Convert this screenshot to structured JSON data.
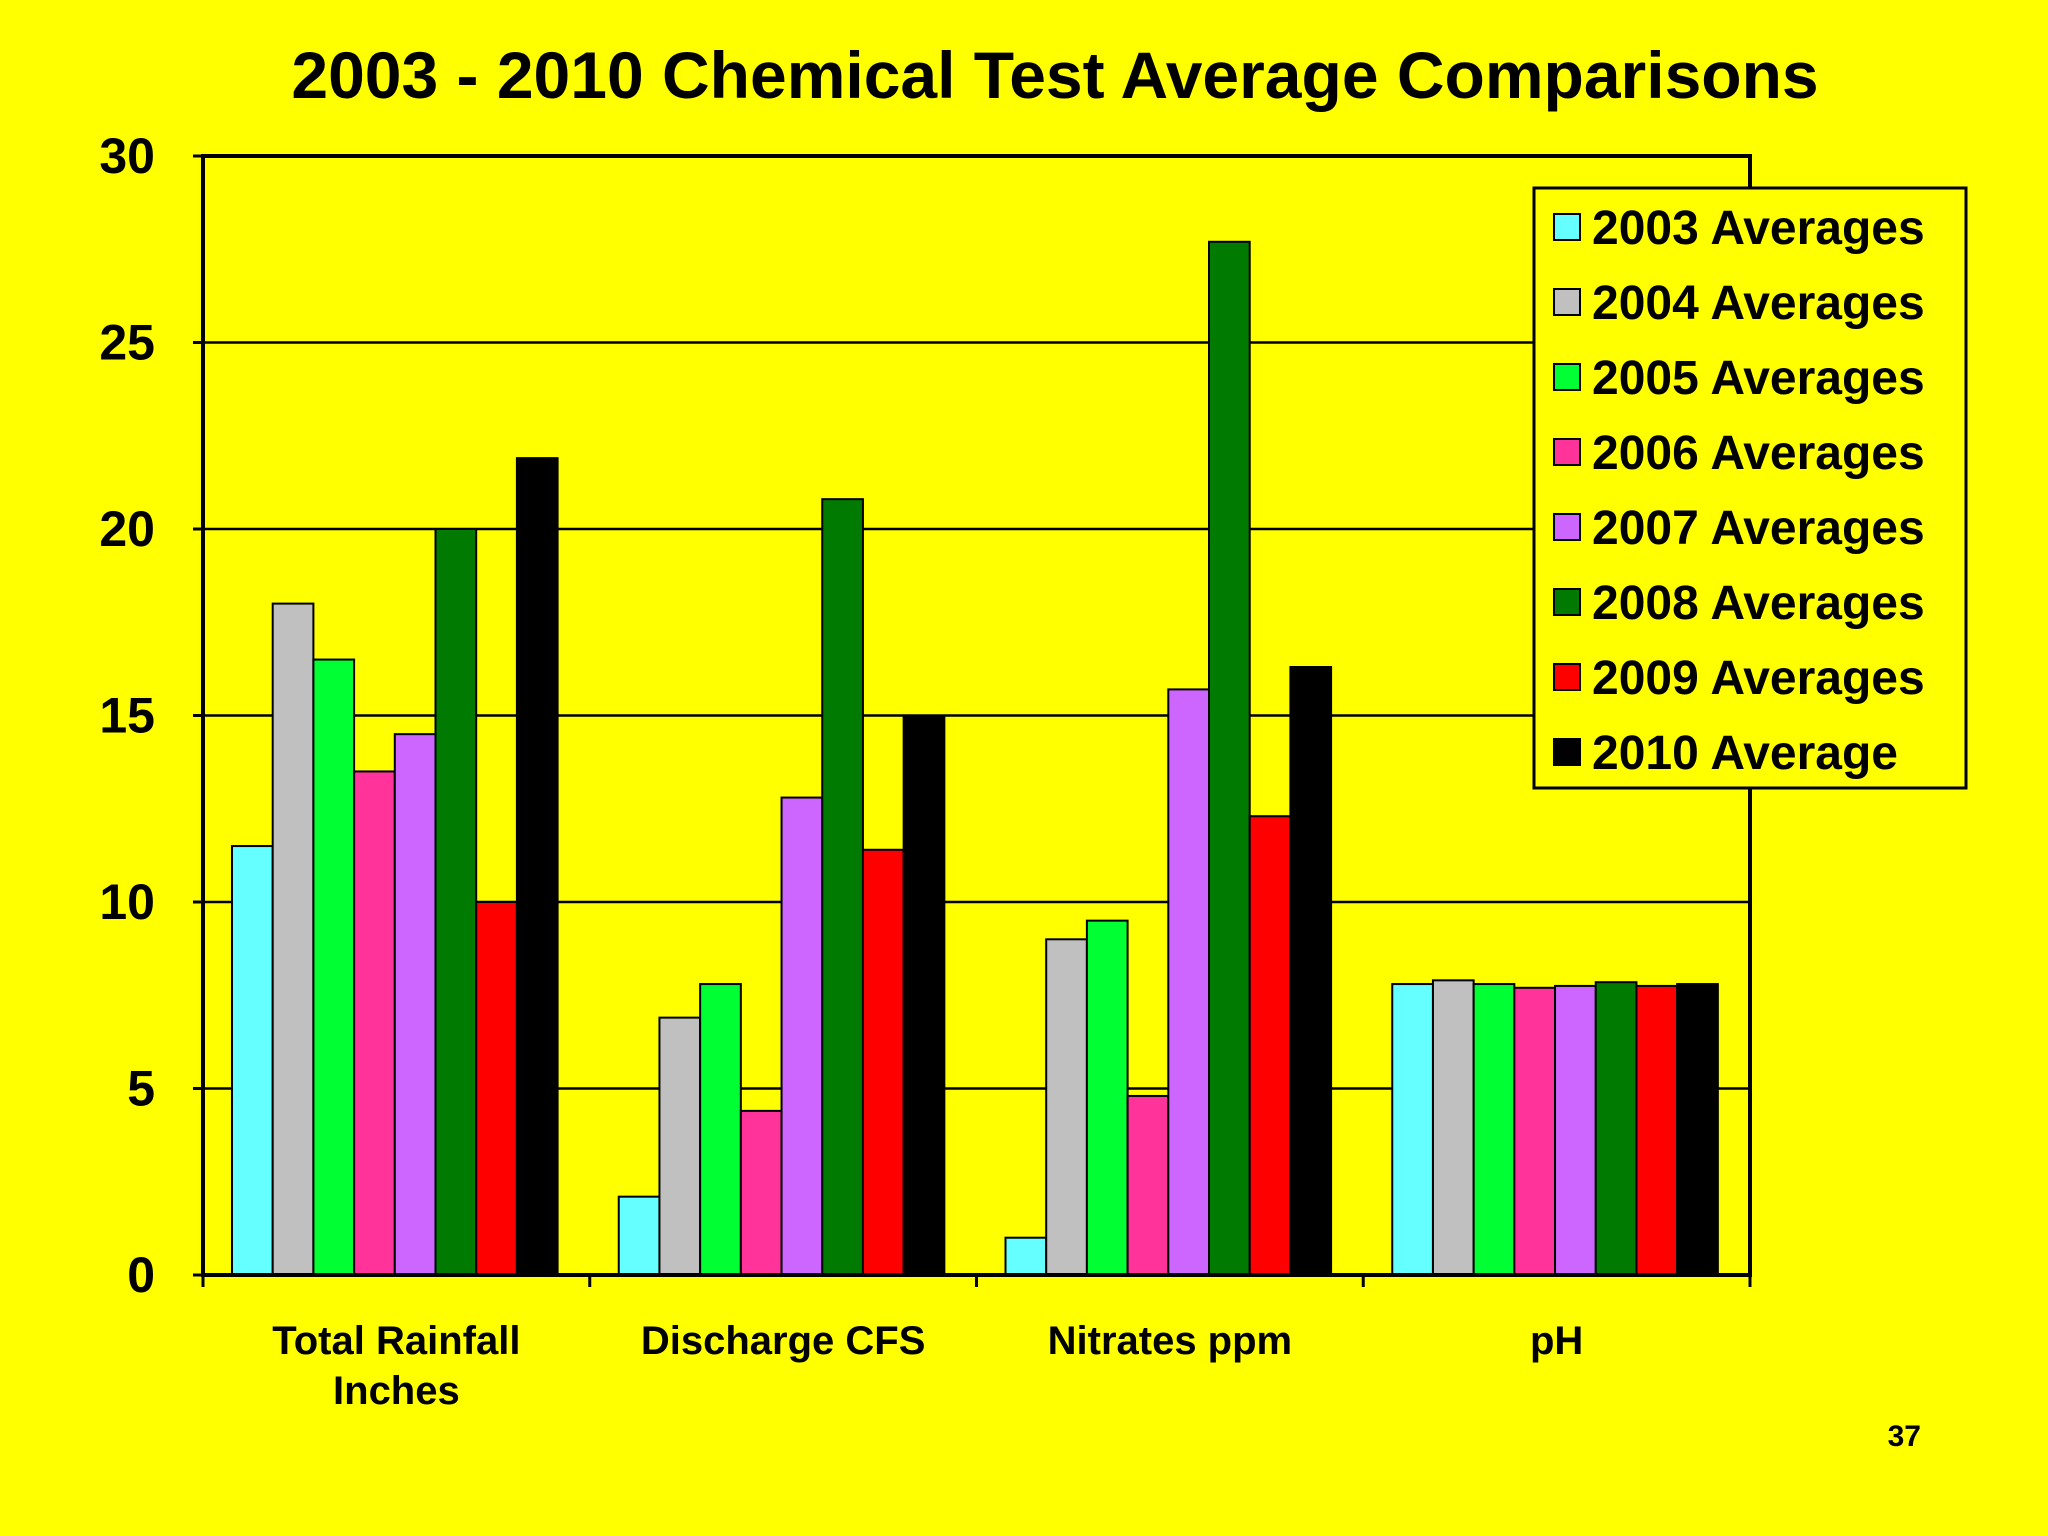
{
  "chart_data": {
    "type": "bar",
    "title": "2003 - 2010 Chemical Test Average Comparisons",
    "categories": [
      [
        "Total Rainfall",
        "Inches"
      ],
      [
        "Discharge CFS"
      ],
      [
        "Nitrates ppm"
      ],
      [
        "pH"
      ]
    ],
    "yticks": [
      "0",
      "5",
      "10",
      "15",
      "20",
      "25",
      "30"
    ],
    "ylim": [
      0,
      30
    ],
    "grid": true,
    "legend_position": "top-right",
    "series": [
      {
        "name": "2003 Averages",
        "color": "#66FFFF",
        "values": [
          11.5,
          2.1,
          1.0,
          7.8
        ]
      },
      {
        "name": "2004 Averages",
        "color": "#C0C0C0",
        "values": [
          18.0,
          6.9,
          9.0,
          7.9
        ]
      },
      {
        "name": "2005 Averages",
        "color": "#00FF33",
        "values": [
          16.5,
          7.8,
          9.5,
          7.8
        ]
      },
      {
        "name": "2006 Averages",
        "color": "#FF3399",
        "values": [
          13.5,
          4.4,
          4.8,
          7.7
        ]
      },
      {
        "name": "2007 Averages",
        "color": "#CC66FF",
        "values": [
          14.5,
          12.8,
          15.7,
          7.75
        ]
      },
      {
        "name": "2008 Averages",
        "color": "#007A00",
        "values": [
          20.0,
          20.8,
          27.7,
          7.85
        ]
      },
      {
        "name": "2009 Averages",
        "color": "#FF0000",
        "values": [
          10.0,
          11.4,
          12.3,
          7.75
        ]
      },
      {
        "name": "2010 Average",
        "color": "#000000",
        "values": [
          21.9,
          15.0,
          16.3,
          7.8
        ]
      }
    ]
  },
  "page_number": "37"
}
